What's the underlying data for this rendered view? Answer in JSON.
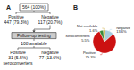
{
  "chart_data": [
    {
      "type": "flowchart",
      "title": "A",
      "annotations": [
        "564 (100%)",
        "Positive",
        "Negative",
        "447 (79.3%)",
        "117 (20.7%)",
        "Follow-up testing",
        "108 available",
        "Positive",
        "Negative",
        "31 (5.5%)",
        "seroconverters",
        "77 (13.6%)"
      ]
    },
    {
      "type": "pie",
      "title": "B",
      "categories": [
        "Negative",
        "Positive",
        "Seroconverters",
        "Not available"
      ],
      "values": [
        13.6,
        79.3,
        5.5,
        1.6
      ],
      "value_labels": [
        "13.6%",
        "79.3%",
        "5.5%",
        "1.6%"
      ],
      "colors": [
        "#a8cde0",
        "#cc1111",
        "#3a8a3a",
        "#c8a020"
      ],
      "data_labels": true
    }
  ]
}
